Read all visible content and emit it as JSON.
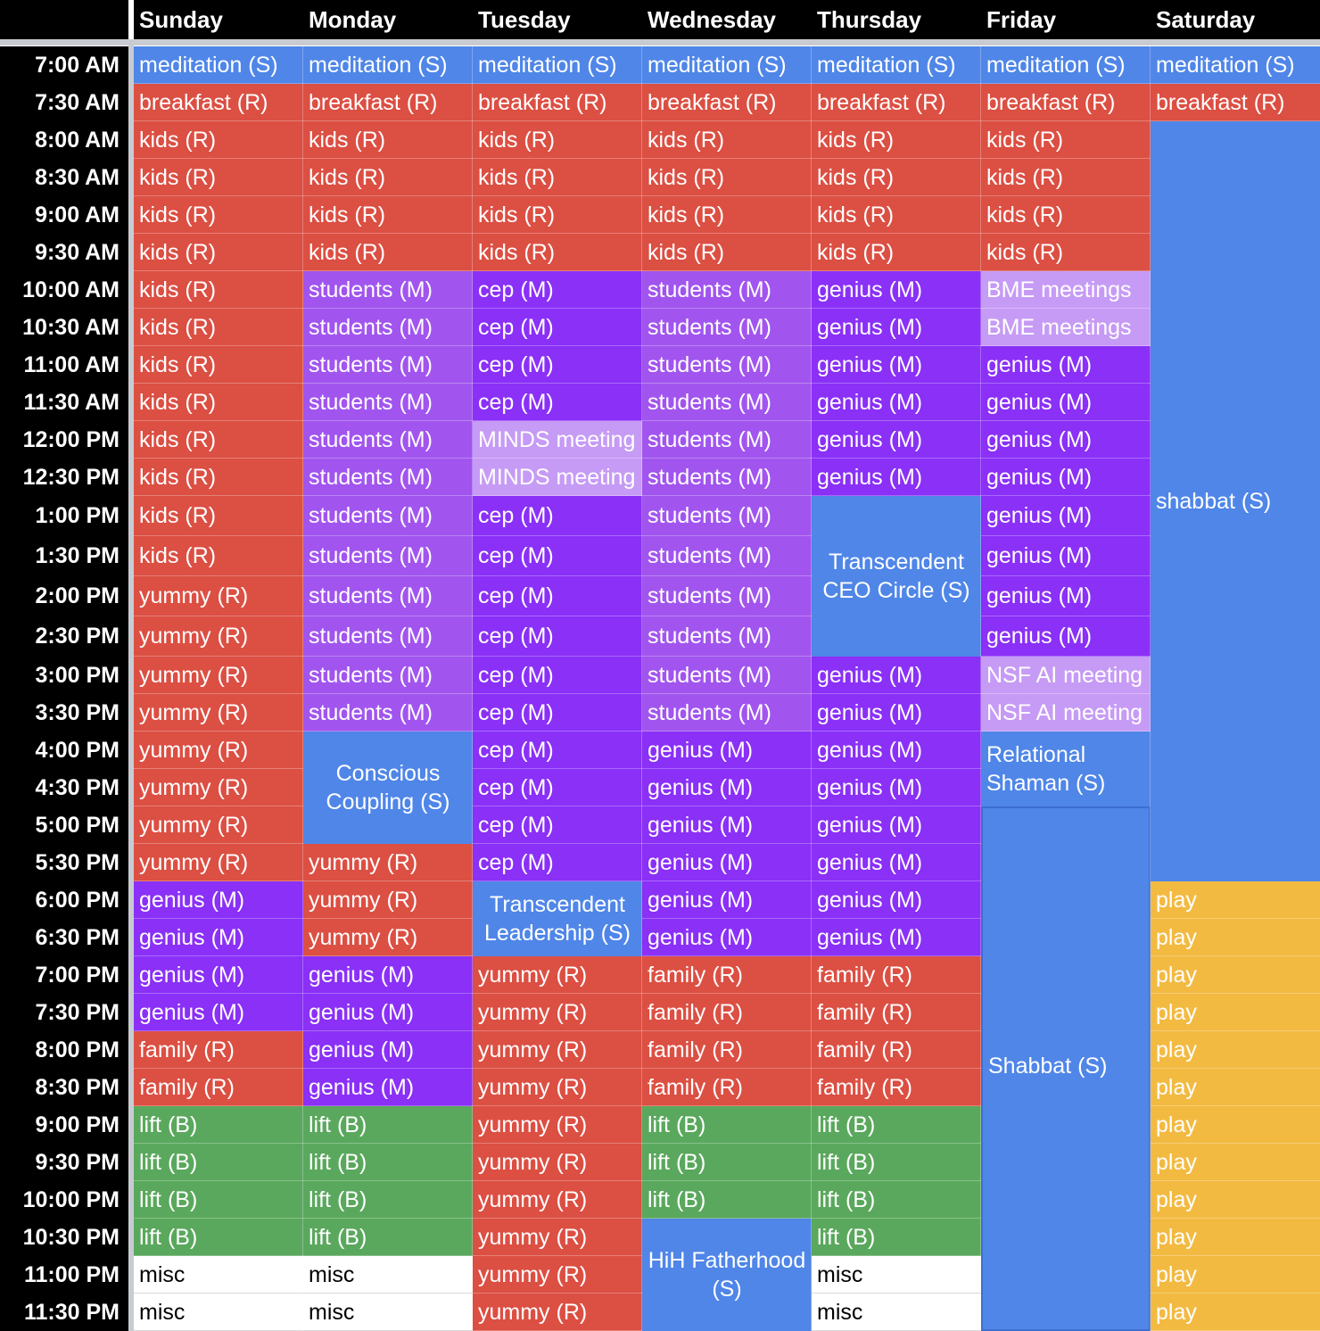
{
  "days": [
    "Sunday",
    "Monday",
    "Tuesday",
    "Wednesday",
    "Thursday",
    "Friday",
    "Saturday"
  ],
  "times": [
    "7:00 AM",
    "7:30 AM",
    "8:00 AM",
    "8:30 AM",
    "9:00 AM",
    "9:30 AM",
    "10:00 AM",
    "10:30 AM",
    "11:00 AM",
    "11:30 AM",
    "12:00 PM",
    "12:30 PM",
    "1:00 PM",
    "1:30 PM",
    "2:00 PM",
    "2:30 PM",
    "3:00 PM",
    "3:30 PM",
    "4:00 PM",
    "4:30 PM",
    "5:00 PM",
    "5:30 PM",
    "6:00 PM",
    "6:30 PM",
    "7:00 PM",
    "7:30 PM",
    "8:00 PM",
    "8:30 PM",
    "9:00 PM",
    "9:30 PM",
    "10:00 PM",
    "10:30 PM",
    "11:00 PM",
    "11:30 PM"
  ],
  "colors": {
    "S": "#4f86e8",
    "R": "#dc4f43",
    "M": "#8a30f7",
    "Mlight": "#a155ee",
    "meet": "#c69bf5",
    "B": "#5aa85d",
    "play": "#f3ba42",
    "misc": "#ffffff"
  },
  "schedule": [
    [
      {
        "label": "meditation (S)",
        "type": "S",
        "rows": 1
      },
      {
        "label": "breakfast (R)",
        "type": "R",
        "rows": 1
      },
      {
        "label": "kids (R)",
        "type": "R",
        "rows": 1
      },
      {
        "label": "kids (R)",
        "type": "R",
        "rows": 1
      },
      {
        "label": "kids (R)",
        "type": "R",
        "rows": 1
      },
      {
        "label": "kids (R)",
        "type": "R",
        "rows": 1
      },
      {
        "label": "kids (R)",
        "type": "R",
        "rows": 1
      },
      {
        "label": "kids (R)",
        "type": "R",
        "rows": 1
      },
      {
        "label": "kids (R)",
        "type": "R",
        "rows": 1
      },
      {
        "label": "kids (R)",
        "type": "R",
        "rows": 1
      },
      {
        "label": "kids (R)",
        "type": "R",
        "rows": 1
      },
      {
        "label": "kids (R)",
        "type": "R",
        "rows": 1
      },
      {
        "label": "kids (R)",
        "type": "R",
        "rows": 1
      },
      {
        "label": "kids (R)",
        "type": "R",
        "rows": 1
      },
      {
        "label": "yummy (R)",
        "type": "R",
        "rows": 1
      },
      {
        "label": "yummy (R)",
        "type": "R",
        "rows": 1
      },
      {
        "label": "yummy (R)",
        "type": "R",
        "rows": 1
      },
      {
        "label": "yummy (R)",
        "type": "R",
        "rows": 1
      },
      {
        "label": "yummy (R)",
        "type": "R",
        "rows": 1
      },
      {
        "label": "yummy (R)",
        "type": "R",
        "rows": 1
      },
      {
        "label": "yummy (R)",
        "type": "R",
        "rows": 1
      },
      {
        "label": "yummy (R)",
        "type": "R",
        "rows": 1
      },
      {
        "label": "genius (M)",
        "type": "M",
        "rows": 1
      },
      {
        "label": "genius (M)",
        "type": "M",
        "rows": 1
      },
      {
        "label": "genius (M)",
        "type": "M",
        "rows": 1
      },
      {
        "label": "genius (M)",
        "type": "M",
        "rows": 1
      },
      {
        "label": "family (R)",
        "type": "R",
        "rows": 1
      },
      {
        "label": "family (R)",
        "type": "R",
        "rows": 1
      },
      {
        "label": "lift (B)",
        "type": "B",
        "rows": 1
      },
      {
        "label": "lift (B)",
        "type": "B",
        "rows": 1
      },
      {
        "label": "lift (B)",
        "type": "B",
        "rows": 1
      },
      {
        "label": "lift (B)",
        "type": "B",
        "rows": 1
      },
      {
        "label": "misc",
        "type": "misc",
        "rows": 1
      },
      {
        "label": "misc",
        "type": "misc",
        "rows": 1
      }
    ],
    [
      {
        "label": "meditation (S)",
        "type": "S",
        "rows": 1
      },
      {
        "label": "breakfast (R)",
        "type": "R",
        "rows": 1
      },
      {
        "label": "kids (R)",
        "type": "R",
        "rows": 1
      },
      {
        "label": "kids (R)",
        "type": "R",
        "rows": 1
      },
      {
        "label": "kids (R)",
        "type": "R",
        "rows": 1
      },
      {
        "label": "kids (R)",
        "type": "R",
        "rows": 1
      },
      {
        "label": "students (M)",
        "type": "Mlight",
        "rows": 1
      },
      {
        "label": "students (M)",
        "type": "Mlight",
        "rows": 1
      },
      {
        "label": "students (M)",
        "type": "Mlight",
        "rows": 1
      },
      {
        "label": "students (M)",
        "type": "Mlight",
        "rows": 1
      },
      {
        "label": "students (M)",
        "type": "Mlight",
        "rows": 1
      },
      {
        "label": "students (M)",
        "type": "Mlight",
        "rows": 1
      },
      {
        "label": "students (M)",
        "type": "Mlight",
        "rows": 1
      },
      {
        "label": "students (M)",
        "type": "Mlight",
        "rows": 1
      },
      {
        "label": "students (M)",
        "type": "Mlight",
        "rows": 1
      },
      {
        "label": "students (M)",
        "type": "Mlight",
        "rows": 1
      },
      {
        "label": "students (M)",
        "type": "Mlight",
        "rows": 1
      },
      {
        "label": "students (M)",
        "type": "Mlight",
        "rows": 1
      },
      {
        "label": "Conscious Coupling (S)",
        "type": "S",
        "rows": 3,
        "style": "center"
      },
      {
        "label": "yummy (R)",
        "type": "R",
        "rows": 1
      },
      {
        "label": "yummy (R)",
        "type": "R",
        "rows": 1
      },
      {
        "label": "yummy (R)",
        "type": "R",
        "rows": 1
      },
      {
        "label": "genius (M)",
        "type": "M",
        "rows": 1
      },
      {
        "label": "genius (M)",
        "type": "M",
        "rows": 1
      },
      {
        "label": "genius (M)",
        "type": "M",
        "rows": 1
      },
      {
        "label": "genius (M)",
        "type": "M",
        "rows": 1
      },
      {
        "label": "lift (B)",
        "type": "B",
        "rows": 1
      },
      {
        "label": "lift (B)",
        "type": "B",
        "rows": 1
      },
      {
        "label": "lift (B)",
        "type": "B",
        "rows": 1
      },
      {
        "label": "lift (B)",
        "type": "B",
        "rows": 1
      },
      {
        "label": "misc",
        "type": "misc",
        "rows": 1
      },
      {
        "label": "misc",
        "type": "misc",
        "rows": 1
      }
    ],
    [
      {
        "label": "meditation (S)",
        "type": "S",
        "rows": 1
      },
      {
        "label": "breakfast (R)",
        "type": "R",
        "rows": 1
      },
      {
        "label": "kids (R)",
        "type": "R",
        "rows": 1
      },
      {
        "label": "kids (R)",
        "type": "R",
        "rows": 1
      },
      {
        "label": "kids (R)",
        "type": "R",
        "rows": 1
      },
      {
        "label": "kids (R)",
        "type": "R",
        "rows": 1
      },
      {
        "label": "cep (M)",
        "type": "M",
        "rows": 1
      },
      {
        "label": "cep (M)",
        "type": "M",
        "rows": 1
      },
      {
        "label": "cep (M)",
        "type": "M",
        "rows": 1
      },
      {
        "label": "cep (M)",
        "type": "M",
        "rows": 1
      },
      {
        "label": "MINDS meeting",
        "type": "meet",
        "rows": 1
      },
      {
        "label": "MINDS meeting",
        "type": "meet",
        "rows": 1
      },
      {
        "label": "cep (M)",
        "type": "M",
        "rows": 1
      },
      {
        "label": "cep (M)",
        "type": "M",
        "rows": 1
      },
      {
        "label": "cep (M)",
        "type": "M",
        "rows": 1
      },
      {
        "label": "cep (M)",
        "type": "M",
        "rows": 1
      },
      {
        "label": "cep (M)",
        "type": "M",
        "rows": 1
      },
      {
        "label": "cep (M)",
        "type": "M",
        "rows": 1
      },
      {
        "label": "cep (M)",
        "type": "M",
        "rows": 1
      },
      {
        "label": "cep (M)",
        "type": "M",
        "rows": 1
      },
      {
        "label": "cep (M)",
        "type": "M",
        "rows": 1
      },
      {
        "label": "cep (M)",
        "type": "M",
        "rows": 1
      },
      {
        "label": "Transcendent Leadership (S)",
        "type": "S",
        "rows": 2,
        "style": "center"
      },
      {
        "label": "yummy (R)",
        "type": "R",
        "rows": 1
      },
      {
        "label": "yummy (R)",
        "type": "R",
        "rows": 1
      },
      {
        "label": "yummy (R)",
        "type": "R",
        "rows": 1
      },
      {
        "label": "yummy (R)",
        "type": "R",
        "rows": 1
      },
      {
        "label": "yummy (R)",
        "type": "R",
        "rows": 1
      },
      {
        "label": "yummy (R)",
        "type": "R",
        "rows": 1
      },
      {
        "label": "yummy (R)",
        "type": "R",
        "rows": 1
      },
      {
        "label": "yummy (R)",
        "type": "R",
        "rows": 1
      },
      {
        "label": "yummy (R)",
        "type": "R",
        "rows": 1
      },
      {
        "label": "yummy (R)",
        "type": "R",
        "rows": 1
      }
    ],
    [
      {
        "label": "meditation (S)",
        "type": "S",
        "rows": 1
      },
      {
        "label": "breakfast (R)",
        "type": "R",
        "rows": 1
      },
      {
        "label": "kids (R)",
        "type": "R",
        "rows": 1
      },
      {
        "label": "kids (R)",
        "type": "R",
        "rows": 1
      },
      {
        "label": "kids (R)",
        "type": "R",
        "rows": 1
      },
      {
        "label": "kids (R)",
        "type": "R",
        "rows": 1
      },
      {
        "label": "students (M)",
        "type": "Mlight",
        "rows": 1
      },
      {
        "label": "students (M)",
        "type": "Mlight",
        "rows": 1
      },
      {
        "label": "students (M)",
        "type": "Mlight",
        "rows": 1
      },
      {
        "label": "students (M)",
        "type": "Mlight",
        "rows": 1
      },
      {
        "label": "students (M)",
        "type": "Mlight",
        "rows": 1
      },
      {
        "label": "students (M)",
        "type": "Mlight",
        "rows": 1
      },
      {
        "label": "students (M)",
        "type": "Mlight",
        "rows": 1
      },
      {
        "label": "students (M)",
        "type": "Mlight",
        "rows": 1
      },
      {
        "label": "students (M)",
        "type": "Mlight",
        "rows": 1
      },
      {
        "label": "students (M)",
        "type": "Mlight",
        "rows": 1
      },
      {
        "label": "students (M)",
        "type": "Mlight",
        "rows": 1
      },
      {
        "label": "students (M)",
        "type": "Mlight",
        "rows": 1
      },
      {
        "label": "genius (M)",
        "type": "M",
        "rows": 1
      },
      {
        "label": "genius (M)",
        "type": "M",
        "rows": 1
      },
      {
        "label": "genius (M)",
        "type": "M",
        "rows": 1
      },
      {
        "label": "genius (M)",
        "type": "M",
        "rows": 1
      },
      {
        "label": "genius (M)",
        "type": "M",
        "rows": 1
      },
      {
        "label": "genius (M)",
        "type": "M",
        "rows": 1
      },
      {
        "label": "family (R)",
        "type": "R",
        "rows": 1
      },
      {
        "label": "family (R)",
        "type": "R",
        "rows": 1
      },
      {
        "label": "family (R)",
        "type": "R",
        "rows": 1
      },
      {
        "label": "family (R)",
        "type": "R",
        "rows": 1
      },
      {
        "label": "lift (B)",
        "type": "B",
        "rows": 1
      },
      {
        "label": "lift (B)",
        "type": "B",
        "rows": 1
      },
      {
        "label": "lift (B)",
        "type": "B",
        "rows": 1
      },
      {
        "label": "HiH Fatherhood (S)",
        "type": "S",
        "rows": 3,
        "style": "center"
      }
    ],
    [
      {
        "label": "meditation (S)",
        "type": "S",
        "rows": 1
      },
      {
        "label": "breakfast (R)",
        "type": "R",
        "rows": 1
      },
      {
        "label": "kids (R)",
        "type": "R",
        "rows": 1
      },
      {
        "label": "kids (R)",
        "type": "R",
        "rows": 1
      },
      {
        "label": "kids (R)",
        "type": "R",
        "rows": 1
      },
      {
        "label": "kids (R)",
        "type": "R",
        "rows": 1
      },
      {
        "label": "genius (M)",
        "type": "M",
        "rows": 1
      },
      {
        "label": "genius (M)",
        "type": "M",
        "rows": 1
      },
      {
        "label": "genius (M)",
        "type": "M",
        "rows": 1
      },
      {
        "label": "genius (M)",
        "type": "M",
        "rows": 1
      },
      {
        "label": "genius (M)",
        "type": "M",
        "rows": 1
      },
      {
        "label": "genius (M)",
        "type": "M",
        "rows": 1
      },
      {
        "label": "Transcendent CEO Circle (S)",
        "type": "S",
        "rows": 4,
        "style": "center"
      },
      {
        "label": "genius (M)",
        "type": "M",
        "rows": 1
      },
      {
        "label": "genius (M)",
        "type": "M",
        "rows": 1
      },
      {
        "label": "genius (M)",
        "type": "M",
        "rows": 1
      },
      {
        "label": "genius (M)",
        "type": "M",
        "rows": 1
      },
      {
        "label": "genius (M)",
        "type": "M",
        "rows": 1
      },
      {
        "label": "genius (M)",
        "type": "M",
        "rows": 1
      },
      {
        "label": "genius (M)",
        "type": "M",
        "rows": 1
      },
      {
        "label": "genius (M)",
        "type": "M",
        "rows": 1
      },
      {
        "label": "family (R)",
        "type": "R",
        "rows": 1
      },
      {
        "label": "family (R)",
        "type": "R",
        "rows": 1
      },
      {
        "label": "family (R)",
        "type": "R",
        "rows": 1
      },
      {
        "label": "family (R)",
        "type": "R",
        "rows": 1
      },
      {
        "label": "lift (B)",
        "type": "B",
        "rows": 1
      },
      {
        "label": "lift (B)",
        "type": "B",
        "rows": 1
      },
      {
        "label": "lift (B)",
        "type": "B",
        "rows": 1
      },
      {
        "label": "lift (B)",
        "type": "B",
        "rows": 1
      },
      {
        "label": "misc",
        "type": "misc",
        "rows": 1
      },
      {
        "label": "misc",
        "type": "misc",
        "rows": 1
      }
    ],
    [
      {
        "label": "meditation (S)",
        "type": "S",
        "rows": 1
      },
      {
        "label": "breakfast (R)",
        "type": "R",
        "rows": 1
      },
      {
        "label": "kids (R)",
        "type": "R",
        "rows": 1
      },
      {
        "label": "kids (R)",
        "type": "R",
        "rows": 1
      },
      {
        "label": "kids (R)",
        "type": "R",
        "rows": 1
      },
      {
        "label": "kids (R)",
        "type": "R",
        "rows": 1
      },
      {
        "label": "BME meetings",
        "type": "meet",
        "rows": 1
      },
      {
        "label": "BME meetings",
        "type": "meet",
        "rows": 1
      },
      {
        "label": "genius (M)",
        "type": "M",
        "rows": 1
      },
      {
        "label": "genius (M)",
        "type": "M",
        "rows": 1
      },
      {
        "label": "genius (M)",
        "type": "M",
        "rows": 1
      },
      {
        "label": "genius (M)",
        "type": "M",
        "rows": 1
      },
      {
        "label": "genius (M)",
        "type": "M",
        "rows": 1
      },
      {
        "label": "genius (M)",
        "type": "M",
        "rows": 1
      },
      {
        "label": "genius (M)",
        "type": "M",
        "rows": 1
      },
      {
        "label": "genius (M)",
        "type": "M",
        "rows": 1
      },
      {
        "label": "NSF AI meeting",
        "type": "meet",
        "rows": 1
      },
      {
        "label": "NSF AI meeting",
        "type": "meet",
        "rows": 1
      },
      {
        "label": "Relational Shaman (S)",
        "type": "S",
        "rows": 2,
        "style": "vmid"
      },
      {
        "label": "Shabbat (S)",
        "type": "S",
        "rows": 14,
        "style": "vmid2",
        "outline": true
      }
    ],
    [
      {
        "label": "meditation (S)",
        "type": "S",
        "rows": 1
      },
      {
        "label": "breakfast (R)",
        "type": "R",
        "rows": 1
      },
      {
        "label": "shabbat (S)",
        "type": "S",
        "rows": 20,
        "style": "vmid"
      },
      {
        "label": "play",
        "type": "play",
        "rows": 1
      },
      {
        "label": "play",
        "type": "play",
        "rows": 1
      },
      {
        "label": "play",
        "type": "play",
        "rows": 1
      },
      {
        "label": "play",
        "type": "play",
        "rows": 1
      },
      {
        "label": "play",
        "type": "play",
        "rows": 1
      },
      {
        "label": "play",
        "type": "play",
        "rows": 1
      },
      {
        "label": "play",
        "type": "play",
        "rows": 1
      },
      {
        "label": "play",
        "type": "play",
        "rows": 1
      },
      {
        "label": "play",
        "type": "play",
        "rows": 1
      },
      {
        "label": "play",
        "type": "play",
        "rows": 1
      },
      {
        "label": "play",
        "type": "play",
        "rows": 1
      },
      {
        "label": "play",
        "type": "play",
        "rows": 1
      }
    ]
  ]
}
